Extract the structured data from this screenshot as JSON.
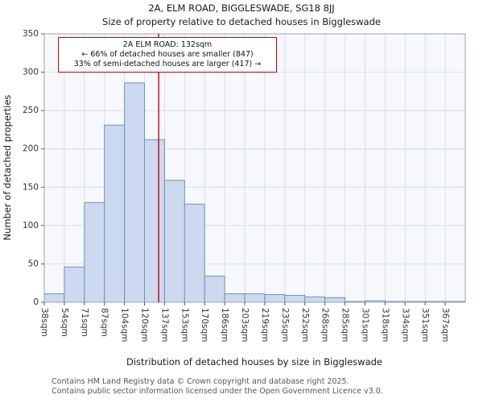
{
  "title": "2A, ELM ROAD, BIGGLESWADE, SG18 8JJ",
  "subtitle": "Size of property relative to detached houses in Biggleswade",
  "chart_data": {
    "type": "bar",
    "categories": [
      "38sqm",
      "54sqm",
      "71sqm",
      "87sqm",
      "104sqm",
      "120sqm",
      "137sqm",
      "153sqm",
      "170sqm",
      "186sqm",
      "203sqm",
      "219sqm",
      "235sqm",
      "252sqm",
      "268sqm",
      "285sqm",
      "301sqm",
      "318sqm",
      "334sqm",
      "351sqm",
      "367sqm"
    ],
    "values": [
      11,
      46,
      130,
      231,
      286,
      212,
      159,
      128,
      34,
      11,
      11,
      10,
      9,
      7,
      6,
      1,
      2,
      1,
      1,
      1,
      1
    ],
    "title": "Size of property relative to detached houses in Biggleswade",
    "xlabel": "Distribution of detached houses by size in Biggleswade",
    "ylabel": "Number of detached properties",
    "ylim": [
      0,
      350
    ],
    "yticks": [
      0,
      50,
      100,
      150,
      200,
      250,
      300,
      350
    ],
    "grid": true,
    "bar_fill": "#ccd9ee",
    "bar_stroke": "#6c92c4",
    "plot_bg": "#f7f8fc",
    "grid_color": "#d8deee",
    "marker": {
      "value_sqm": 132,
      "color": "#cc0000"
    },
    "annotation": {
      "lines": [
        "2A ELM ROAD: 132sqm",
        "← 66% of detached houses are smaller (847)",
        "33% of semi-detached houses are larger (417) →"
      ],
      "border_color": "#cc0000"
    }
  },
  "footer": {
    "line1": "Contains HM Land Registry data © Crown copyright and database right 2025.",
    "line2": "Contains public sector information licensed under the Open Government Licence v3.0."
  }
}
